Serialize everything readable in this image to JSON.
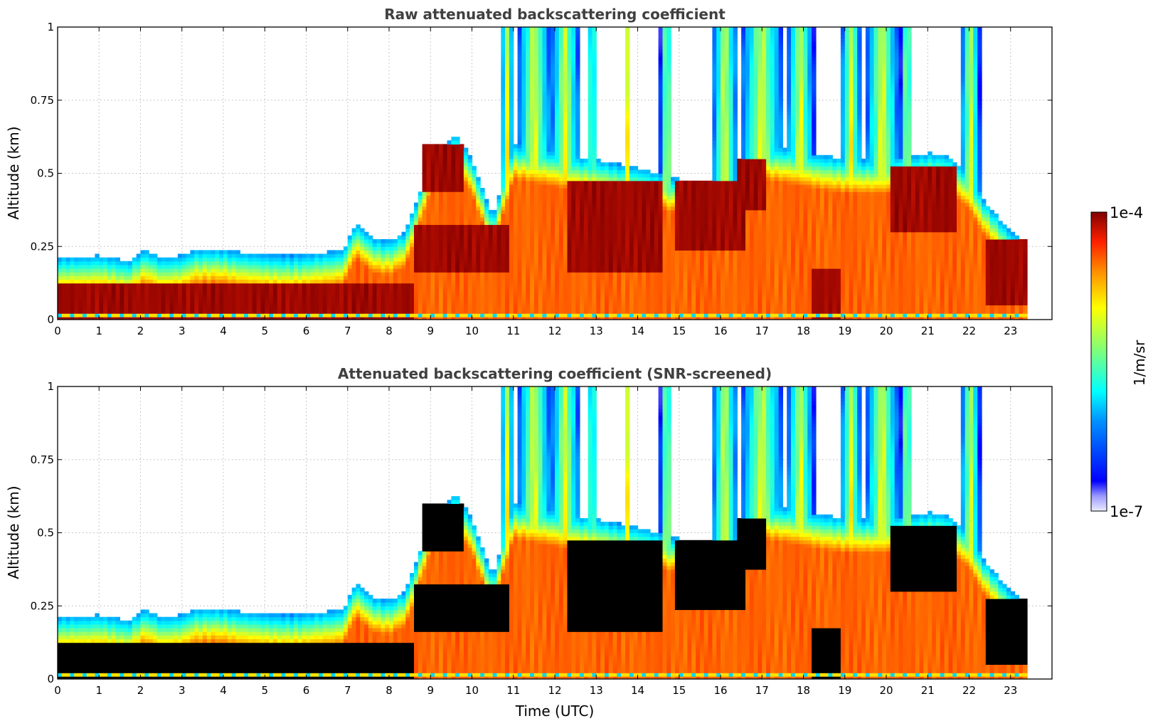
{
  "chart_data": [
    {
      "type": "heatmap",
      "title": "Raw attenuated backscattering coefficient",
      "xlabel": "",
      "ylabel": "Altitude (km)",
      "xlim": [
        0,
        24
      ],
      "ylim": [
        0,
        1
      ],
      "x_ticks": [
        "0",
        "1",
        "2",
        "3",
        "4",
        "5",
        "6",
        "7",
        "8",
        "9",
        "10",
        "11",
        "12",
        "13",
        "14",
        "15",
        "16",
        "17",
        "18",
        "19",
        "20",
        "21",
        "22",
        "23"
      ],
      "y_ticks": [
        "0",
        "0.25",
        "0.5",
        "0.75",
        "1"
      ],
      "grid": true,
      "screened": false,
      "data_end_hour": 23.4,
      "surface_layer_top_km": [
        [
          0,
          0.21
        ],
        [
          1,
          0.22
        ],
        [
          1.7,
          0.2
        ],
        [
          2.1,
          0.24
        ],
        [
          2.5,
          0.21
        ],
        [
          3,
          0.22
        ],
        [
          3.3,
          0.24
        ],
        [
          4,
          0.24
        ],
        [
          5,
          0.22
        ],
        [
          6,
          0.22
        ],
        [
          6.9,
          0.24
        ],
        [
          7.2,
          0.33
        ],
        [
          7.6,
          0.28
        ],
        [
          8,
          0.27
        ],
        [
          8.4,
          0.3
        ],
        [
          8.7,
          0.42
        ],
        [
          9,
          0.56
        ],
        [
          9.3,
          0.58
        ],
        [
          9.6,
          0.64
        ],
        [
          10,
          0.55
        ],
        [
          10.5,
          0.35
        ],
        [
          11,
          0.6
        ],
        [
          14,
          0.52
        ],
        [
          15,
          0.48
        ],
        [
          16,
          0.38
        ],
        [
          17,
          0.6
        ],
        [
          19,
          0.55
        ],
        [
          20,
          0.55
        ],
        [
          20.6,
          0.56
        ],
        [
          21,
          0.57
        ],
        [
          21.5,
          0.56
        ],
        [
          22,
          0.5
        ],
        [
          22.3,
          0.42
        ],
        [
          22.7,
          0.35
        ],
        [
          23,
          0.3
        ],
        [
          23.4,
          0.27
        ]
      ],
      "dense_layers": [
        {
          "t0": 0,
          "t1": 8.6,
          "base_km": 0,
          "top_km": 0.13
        },
        {
          "t0": 8.6,
          "t1": 10.9,
          "base_km": 0.16,
          "top_km": 0.33
        },
        {
          "t0": 8.8,
          "t1": 9.8,
          "base_km": 0.44,
          "top_km": 0.6
        },
        {
          "t0": 12.3,
          "t1": 14.6,
          "base_km": 0.16,
          "top_km": 0.48
        },
        {
          "t0": 14.9,
          "t1": 16.6,
          "base_km": 0.24,
          "top_km": 0.47
        },
        {
          "t0": 16.4,
          "t1": 17.1,
          "base_km": 0.38,
          "top_km": 0.55
        },
        {
          "t0": 18.2,
          "t1": 18.9,
          "base_km": 0,
          "top_km": 0.17
        },
        {
          "t0": 20.1,
          "t1": 21.7,
          "base_km": 0.3,
          "top_km": 0.53
        },
        {
          "t0": 22.4,
          "t1": 23.4,
          "base_km": 0.05,
          "top_km": 0.28
        }
      ],
      "precipitation_columns": [
        {
          "t0": 10.7,
          "t1": 11.0
        },
        {
          "t0": 11.1,
          "t1": 11.9
        },
        {
          "t0": 11.9,
          "t1": 12.6
        },
        {
          "t0": 12.8,
          "t1": 13.0
        },
        {
          "t0": 13.7,
          "t1": 13.8
        },
        {
          "t0": 14.55,
          "t1": 14.85
        },
        {
          "t0": 15.8,
          "t1": 16.4
        },
        {
          "t0": 16.5,
          "t1": 17.5
        },
        {
          "t0": 17.6,
          "t1": 18.25
        },
        {
          "t0": 18.9,
          "t1": 19.4
        },
        {
          "t0": 19.5,
          "t1": 20.3
        },
        {
          "t0": 20.35,
          "t1": 20.65
        },
        {
          "t0": 21.8,
          "t1": 22.25
        }
      ]
    },
    {
      "type": "heatmap",
      "title": "Attenuated backscattering coefficient (SNR-screened)",
      "xlabel": "Time (UTC)",
      "ylabel": "Altitude (km)",
      "xlim": [
        0,
        24
      ],
      "ylim": [
        0,
        1
      ],
      "x_ticks": [
        "0",
        "1",
        "2",
        "3",
        "4",
        "5",
        "6",
        "7",
        "8",
        "9",
        "10",
        "11",
        "12",
        "13",
        "14",
        "15",
        "16",
        "17",
        "18",
        "19",
        "20",
        "21",
        "22",
        "23"
      ],
      "y_ticks": [
        "0",
        "0.25",
        "0.5",
        "0.75",
        "1"
      ],
      "grid": true,
      "screened": true,
      "data_end_hour": 23.4
    }
  ],
  "colorbar": {
    "label": "1/m/sr",
    "min_label": "1e-7",
    "max_label": "1e-4",
    "scale": "log",
    "colormap": "jet",
    "colors": [
      "#e6e6ff",
      "#0000ff",
      "#00a0ff",
      "#00ffff",
      "#7fff7f",
      "#ffff00",
      "#ff9000",
      "#ff2000",
      "#800000"
    ]
  }
}
